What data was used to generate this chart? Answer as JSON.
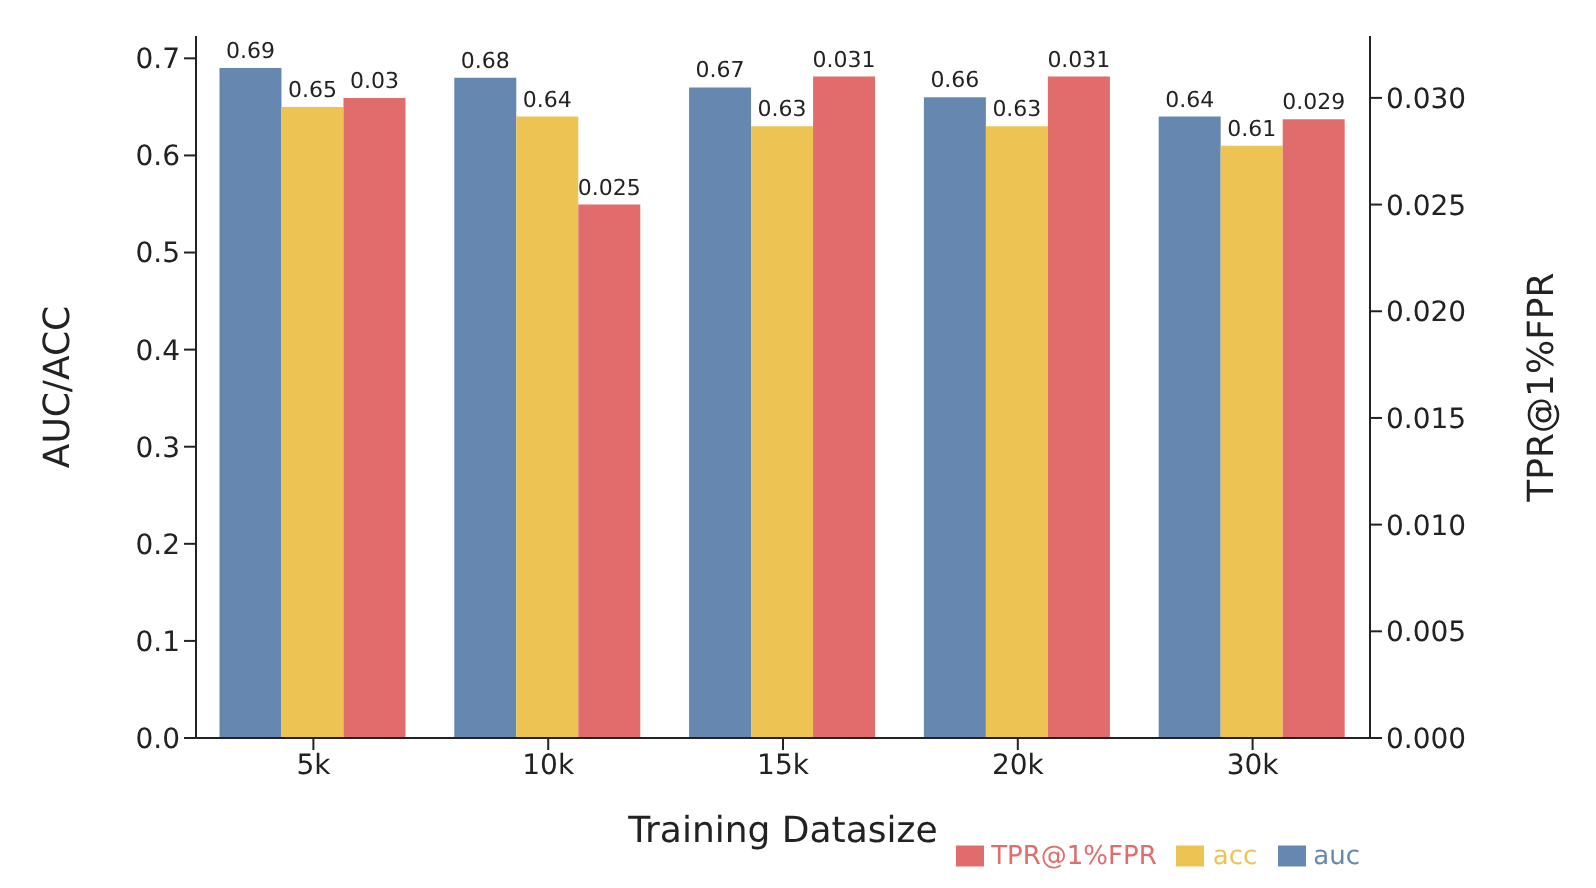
{
  "chart_data": {
    "type": "bar",
    "xlabel": "Training Datasize",
    "ylabel": "AUC/ACC",
    "y2label": "TPR@1%FPR",
    "categories": [
      "5k",
      "10k",
      "15k",
      "20k",
      "30k"
    ],
    "series": [
      {
        "name": "auc",
        "color": "#6688b0",
        "values": [
          0.69,
          0.68,
          0.67,
          0.66,
          0.64
        ]
      },
      {
        "name": "acc",
        "color": "#edc453",
        "values": [
          0.65,
          0.64,
          0.63,
          0.63,
          0.61
        ]
      },
      {
        "name": "TPR@1%FPR",
        "color": "#e06c6c",
        "axis": "y2",
        "values": [
          0.03,
          0.025,
          0.031,
          0.031,
          0.029
        ]
      }
    ],
    "ylim": [
      0,
      0.723
    ],
    "yticks": [
      {
        "value": 0,
        "label": "0.0"
      },
      0.1,
      0.2,
      0.3,
      0.4,
      0.5,
      0.6,
      0.7
    ],
    "y2lim": [
      0,
      0.0329
    ],
    "y2ticks": [
      {
        "value": 0,
        "label": "0.000"
      },
      {
        "value": 0.005,
        "label": "0.005"
      },
      {
        "value": 0.01,
        "label": "0.010"
      },
      {
        "value": 0.015,
        "label": "0.015"
      },
      {
        "value": 0.02,
        "label": "0.020"
      },
      {
        "value": 0.025,
        "label": "0.025"
      },
      {
        "value": 0.03,
        "label": "0.030"
      }
    ],
    "grid": false,
    "legend": "bottom right",
    "data_labels": true
  }
}
